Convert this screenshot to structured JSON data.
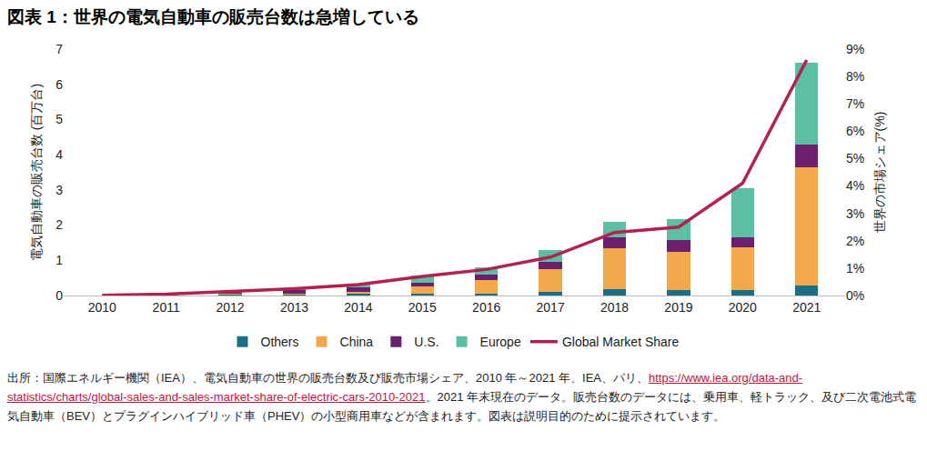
{
  "chart_data": {
    "type": "bar",
    "stacked": true,
    "title": "図表 1：世界の電気自動車の販売台数は急増している",
    "y_label": "電気自動車の販売台数 (百万台)",
    "y2_label": "世界の市場シェア(%)",
    "categories": [
      "2010",
      "2011",
      "2012",
      "2013",
      "2014",
      "2015",
      "2016",
      "2017",
      "2018",
      "2019",
      "2020",
      "2021"
    ],
    "series": [
      {
        "name": "Others",
        "color": "#1b6f86",
        "values": [
          0.005,
          0.02,
          0.03,
          0.03,
          0.04,
          0.04,
          0.05,
          0.1,
          0.18,
          0.16,
          0.16,
          0.28
        ]
      },
      {
        "name": "China",
        "color": "#f2a84c",
        "values": [
          0.0,
          0.005,
          0.01,
          0.015,
          0.07,
          0.22,
          0.4,
          0.65,
          1.17,
          1.09,
          1.22,
          3.37
        ]
      },
      {
        "name": "U.S.",
        "color": "#6b1f6f",
        "values": [
          0.0,
          0.018,
          0.05,
          0.1,
          0.12,
          0.11,
          0.15,
          0.2,
          0.3,
          0.33,
          0.27,
          0.65
        ]
      },
      {
        "name": "Europe",
        "color": "#5cbfa4",
        "values": [
          0.0,
          0.01,
          0.03,
          0.07,
          0.1,
          0.2,
          0.2,
          0.33,
          0.45,
          0.6,
          1.4,
          2.3
        ]
      },
      {
        "name": "Global Market Share",
        "type": "line",
        "axis": "y2",
        "color": "#b3214f",
        "values": [
          0.01,
          0.05,
          0.15,
          0.25,
          0.4,
          0.7,
          0.95,
          1.4,
          2.3,
          2.5,
          4.1,
          8.6
        ]
      }
    ],
    "ylim": [
      0,
      7
    ],
    "yticks": [
      0,
      1,
      2,
      3,
      4,
      5,
      6,
      7
    ],
    "y2lim": [
      0,
      9
    ],
    "y2ticks": [
      {
        "value": 0,
        "label": "0%"
      },
      {
        "value": 1,
        "label": "1%"
      },
      {
        "value": 2,
        "label": "2%"
      },
      {
        "value": 3,
        "label": "3%"
      },
      {
        "value": 4,
        "label": "4%"
      },
      {
        "value": 5,
        "label": "5%"
      },
      {
        "value": 6,
        "label": "6%"
      },
      {
        "value": 7,
        "label": "7%"
      },
      {
        "value": 8,
        "label": "8%"
      },
      {
        "value": 9,
        "label": "9%"
      }
    ],
    "grid": false,
    "legend": "bottom",
    "source": {
      "text_before": "出所：国際エネルギー機関（IEA）、電気自動車の世界の販売台数及び販売市場シェア、2010 年～2021 年、IEA、パリ、",
      "url": "https://www.iea.org/data-and-statistics/charts/global-sales-and-sales-market-share-of-electric-cars-2010-2021",
      "text_after": "。2021 年末現在のデータ。販売台数のデータには、乗用車、軽トラック、及び二次電池式電気自動車（BEV）とプラグインハイブリッド車（PHEV）の小型商用車などが含まれます。図表は説明目的のために提示されています。"
    }
  }
}
